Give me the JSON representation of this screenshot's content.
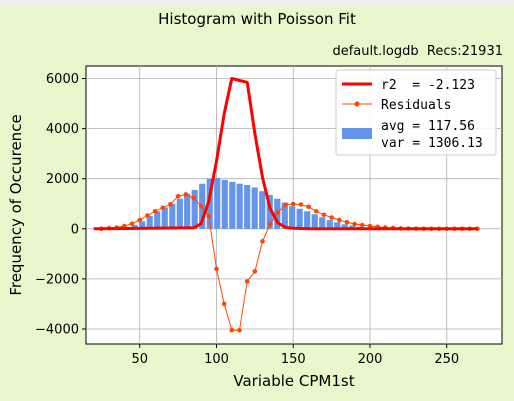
{
  "window": {
    "title": "Histogram with Poisson Fit",
    "subtitle": "default.logdb  Recs:21931"
  },
  "chart_data": {
    "type": "bar",
    "title": "Histogram with Poisson Fit",
    "xlabel": "Variable CPM1st",
    "ylabel": "Frequency of Occurence",
    "xlim": [
      15,
      286
    ],
    "ylim": [
      -4600,
      6500
    ],
    "xticks": [
      50,
      100,
      150,
      200,
      250
    ],
    "yticks": [
      -4000,
      -2000,
      0,
      2000,
      4000,
      6000
    ],
    "grid": true,
    "legend_position": "top-right",
    "histogram": {
      "name": "avg = 117.56\nvar = 1306.13",
      "color": "#6495ed",
      "bin_width": 4.88,
      "x": [
        27.2,
        32.1,
        37.0,
        41.9,
        46.7,
        51.6,
        56.5,
        61.4,
        66.3,
        71.2,
        76.1,
        80.9,
        85.8,
        90.7,
        95.6,
        100.5,
        105.4,
        110.3,
        115.1,
        120.0,
        124.9,
        129.8,
        134.7,
        139.6,
        144.5,
        149.3,
        154.2,
        159.1,
        164.0,
        168.9,
        173.8,
        178.7,
        183.5,
        188.4,
        193.3,
        198.2,
        203.1,
        208.0,
        212.9,
        217.7,
        222.6,
        227.5,
        232.4,
        237.3,
        242.2,
        247.1,
        251.9,
        256.8,
        261.7,
        266.6
      ],
      "values": [
        0,
        0,
        20,
        50,
        150,
        300,
        520,
        700,
        850,
        1000,
        1200,
        1400,
        1550,
        1800,
        2000,
        2030,
        1950,
        1870,
        1800,
        1750,
        1650,
        1500,
        1350,
        1200,
        1050,
        900,
        800,
        700,
        580,
        460,
        350,
        260,
        180,
        130,
        80,
        50,
        30,
        20,
        10,
        5,
        5,
        0,
        0,
        0,
        0,
        0,
        0,
        0,
        0,
        0
      ]
    },
    "series": [
      {
        "name": "r2  = -2.123",
        "color": "#ff0000",
        "x": [
          20,
          85,
          90,
          95,
          100,
          105,
          110,
          115,
          120,
          125,
          130,
          135,
          140,
          145,
          150,
          160,
          170,
          180,
          200,
          220,
          240,
          260,
          270
        ],
        "y": [
          0,
          40,
          200,
          1100,
          2700,
          4600,
          6000,
          5920,
          5850,
          3800,
          2050,
          800,
          230,
          60,
          20,
          0,
          0,
          0,
          0,
          0,
          0,
          0,
          0
        ]
      },
      {
        "name": "Residuals",
        "color": "#ff4500",
        "x": [
          25,
          30,
          35,
          40,
          45,
          50,
          55,
          60,
          65,
          70,
          75,
          80,
          85,
          90,
          95,
          100,
          105,
          110,
          115,
          120,
          125,
          130,
          135,
          140,
          145,
          150,
          155,
          160,
          165,
          170,
          175,
          180,
          185,
          190,
          195,
          200,
          205,
          210,
          215,
          220,
          225,
          230,
          235,
          240,
          245,
          250,
          255,
          260,
          265,
          270
        ],
        "y": [
          0,
          25,
          50,
          110,
          200,
          350,
          530,
          700,
          840,
          980,
          1300,
          1370,
          1230,
          900,
          500,
          -1600,
          -3000,
          -4050,
          -4050,
          -2100,
          -1700,
          -500,
          180,
          650,
          960,
          990,
          970,
          880,
          700,
          560,
          450,
          350,
          260,
          190,
          150,
          110,
          80,
          50,
          30,
          15,
          10,
          5,
          0,
          0,
          0,
          0,
          0,
          0,
          0,
          0
        ]
      }
    ]
  }
}
